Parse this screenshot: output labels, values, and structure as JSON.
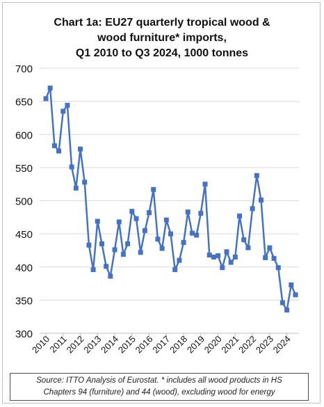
{
  "chart_data": {
    "type": "line",
    "title_lines": [
      "Chart 1a: EU27 quarterly tropical wood &",
      "wood furniture* imports,",
      "Q1 2010 to Q3 2024, 1000 tonnes"
    ],
    "ylim": [
      300,
      700
    ],
    "yticks": [
      300,
      350,
      400,
      450,
      500,
      550,
      600,
      650,
      700
    ],
    "grid": true,
    "x_labels": [
      "2010",
      "2011",
      "2012",
      "2013",
      "2014",
      "2015",
      "2016",
      "2017",
      "2018",
      "2019",
      "2020",
      "2021",
      "2022",
      "2023",
      "2024"
    ],
    "series_color": "#4472c4",
    "series": [
      {
        "values": [
          654,
          670,
          583,
          575,
          635,
          644,
          551,
          519,
          578,
          528,
          433,
          396,
          469,
          435,
          401,
          386,
          426,
          468,
          419,
          435,
          484,
          473,
          422,
          455,
          482,
          517,
          442,
          428,
          471,
          450,
          396,
          410,
          437,
          483,
          451,
          448,
          481,
          525,
          418,
          415,
          417,
          399,
          423,
          407,
          415,
          477,
          441,
          429,
          488,
          538,
          501,
          414,
          429,
          413,
          399,
          346,
          335,
          373,
          358
        ]
      }
    ]
  },
  "source_lines": [
    "Source: ITTO Analysis of Eurostat. * includes all wood products in HS",
    "Chapters 94 (furniture) and 44 (wood), excluding wood for energy"
  ]
}
